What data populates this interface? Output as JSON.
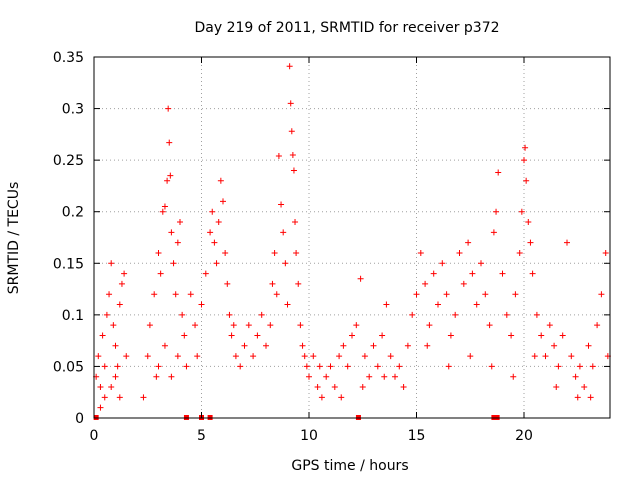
{
  "chart_data": {
    "type": "scatter",
    "title": "Day 219 of 2011, SRMTID for receiver p372",
    "xlabel": "GPS time / hours",
    "ylabel": "SRMTID / TECUs",
    "xlim": [
      0,
      24
    ],
    "ylim": [
      0,
      0.35
    ],
    "x_ticks": [
      0,
      5,
      10,
      15,
      20
    ],
    "x_tick_labels": [
      "0",
      "5",
      "10",
      "15",
      "20"
    ],
    "y_ticks": [
      0,
      0.05,
      0.1,
      0.15,
      0.2,
      0.25,
      0.3,
      0.35
    ],
    "y_tick_labels": [
      "0",
      "0.05",
      "0.1",
      "0.15",
      "0.2",
      "0.25",
      "0.3",
      "0.35"
    ],
    "grid": true,
    "marker": "+",
    "series": [
      {
        "name": "SRMTID",
        "color": "#ff0000",
        "points": [
          [
            0.1,
            0.04
          ],
          [
            0.2,
            0.06
          ],
          [
            0.3,
            0.03
          ],
          [
            0.4,
            0.08
          ],
          [
            0.5,
            0.05
          ],
          [
            0.6,
            0.1
          ],
          [
            0.7,
            0.12
          ],
          [
            0.8,
            0.15
          ],
          [
            0.9,
            0.09
          ],
          [
            1.0,
            0.07
          ],
          [
            1.1,
            0.05
          ],
          [
            1.2,
            0.11
          ],
          [
            1.3,
            0.13
          ],
          [
            1.4,
            0.14
          ],
          [
            1.5,
            0.06
          ],
          [
            0.5,
            0.02
          ],
          [
            0.8,
            0.03
          ],
          [
            1.2,
            0.02
          ],
          [
            0.3,
            0.01
          ],
          [
            1.0,
            0.04
          ],
          [
            2.3,
            0.02
          ],
          [
            2.5,
            0.06
          ],
          [
            2.6,
            0.09
          ],
          [
            2.8,
            0.12
          ],
          [
            2.9,
            0.04
          ],
          [
            3.0,
            0.16
          ],
          [
            3.1,
            0.14
          ],
          [
            3.2,
            0.2
          ],
          [
            3.3,
            0.205
          ],
          [
            3.4,
            0.23
          ],
          [
            3.45,
            0.3
          ],
          [
            3.5,
            0.267
          ],
          [
            3.55,
            0.235
          ],
          [
            3.6,
            0.18
          ],
          [
            3.7,
            0.15
          ],
          [
            3.8,
            0.12
          ],
          [
            3.9,
            0.17
          ],
          [
            4.0,
            0.19
          ],
          [
            4.1,
            0.1
          ],
          [
            4.2,
            0.08
          ],
          [
            3.0,
            0.05
          ],
          [
            3.3,
            0.07
          ],
          [
            3.6,
            0.04
          ],
          [
            3.9,
            0.06
          ],
          [
            4.3,
            0.05
          ],
          [
            4.5,
            0.12
          ],
          [
            4.7,
            0.09
          ],
          [
            4.8,
            0.06
          ],
          [
            5.0,
            0.11
          ],
          [
            5.2,
            0.14
          ],
          [
            5.4,
            0.18
          ],
          [
            5.5,
            0.2
          ],
          [
            5.6,
            0.17
          ],
          [
            5.7,
            0.15
          ],
          [
            5.8,
            0.19
          ],
          [
            5.9,
            0.23
          ],
          [
            6.0,
            0.21
          ],
          [
            6.1,
            0.16
          ],
          [
            6.2,
            0.13
          ],
          [
            6.3,
            0.1
          ],
          [
            6.4,
            0.08
          ],
          [
            6.5,
            0.09
          ],
          [
            6.6,
            0.06
          ],
          [
            6.8,
            0.05
          ],
          [
            7.0,
            0.07
          ],
          [
            7.2,
            0.09
          ],
          [
            7.4,
            0.06
          ],
          [
            7.6,
            0.08
          ],
          [
            7.8,
            0.1
          ],
          [
            8.0,
            0.07
          ],
          [
            8.2,
            0.09
          ],
          [
            8.3,
            0.13
          ],
          [
            8.4,
            0.16
          ],
          [
            8.5,
            0.12
          ],
          [
            8.6,
            0.254
          ],
          [
            8.7,
            0.207
          ],
          [
            8.8,
            0.18
          ],
          [
            8.9,
            0.15
          ],
          [
            9.0,
            0.11
          ],
          [
            9.1,
            0.341
          ],
          [
            9.15,
            0.305
          ],
          [
            9.2,
            0.278
          ],
          [
            9.25,
            0.255
          ],
          [
            9.3,
            0.24
          ],
          [
            9.35,
            0.19
          ],
          [
            9.4,
            0.16
          ],
          [
            9.5,
            0.13
          ],
          [
            9.6,
            0.09
          ],
          [
            9.7,
            0.07
          ],
          [
            9.8,
            0.06
          ],
          [
            9.9,
            0.05
          ],
          [
            10.0,
            0.04
          ],
          [
            10.2,
            0.06
          ],
          [
            10.4,
            0.03
          ],
          [
            10.6,
            0.02
          ],
          [
            10.8,
            0.04
          ],
          [
            11.0,
            0.05
          ],
          [
            11.2,
            0.03
          ],
          [
            11.4,
            0.06
          ],
          [
            11.6,
            0.07
          ],
          [
            11.8,
            0.05
          ],
          [
            12.0,
            0.08
          ],
          [
            12.2,
            0.09
          ],
          [
            12.4,
            0.135
          ],
          [
            12.6,
            0.06
          ],
          [
            12.8,
            0.04
          ],
          [
            13.0,
            0.07
          ],
          [
            13.2,
            0.05
          ],
          [
            13.4,
            0.08
          ],
          [
            13.6,
            0.11
          ],
          [
            13.8,
            0.06
          ],
          [
            14.0,
            0.04
          ],
          [
            14.2,
            0.05
          ],
          [
            14.4,
            0.03
          ],
          [
            14.6,
            0.07
          ],
          [
            14.8,
            0.1
          ],
          [
            15.0,
            0.12
          ],
          [
            15.2,
            0.16
          ],
          [
            15.4,
            0.13
          ],
          [
            15.6,
            0.09
          ],
          [
            15.8,
            0.14
          ],
          [
            16.0,
            0.11
          ],
          [
            16.2,
            0.15
          ],
          [
            16.4,
            0.12
          ],
          [
            16.6,
            0.08
          ],
          [
            16.8,
            0.1
          ],
          [
            17.0,
            0.16
          ],
          [
            17.2,
            0.13
          ],
          [
            17.4,
            0.17
          ],
          [
            17.6,
            0.14
          ],
          [
            17.8,
            0.11
          ],
          [
            18.0,
            0.15
          ],
          [
            18.2,
            0.12
          ],
          [
            18.4,
            0.09
          ],
          [
            18.6,
            0.18
          ],
          [
            18.7,
            0.2
          ],
          [
            18.8,
            0.238
          ],
          [
            19.0,
            0.14
          ],
          [
            19.2,
            0.1
          ],
          [
            19.4,
            0.08
          ],
          [
            19.6,
            0.12
          ],
          [
            19.8,
            0.16
          ],
          [
            19.9,
            0.2
          ],
          [
            20.0,
            0.25
          ],
          [
            20.05,
            0.262
          ],
          [
            20.1,
            0.23
          ],
          [
            20.2,
            0.19
          ],
          [
            20.3,
            0.17
          ],
          [
            20.4,
            0.14
          ],
          [
            20.6,
            0.1
          ],
          [
            20.8,
            0.08
          ],
          [
            21.0,
            0.06
          ],
          [
            21.2,
            0.09
          ],
          [
            21.4,
            0.07
          ],
          [
            21.6,
            0.05
          ],
          [
            21.8,
            0.08
          ],
          [
            22.0,
            0.17
          ],
          [
            22.2,
            0.06
          ],
          [
            22.4,
            0.04
          ],
          [
            22.6,
            0.05
          ],
          [
            22.8,
            0.03
          ],
          [
            23.0,
            0.07
          ],
          [
            23.2,
            0.05
          ],
          [
            23.4,
            0.09
          ],
          [
            23.6,
            0.12
          ],
          [
            23.8,
            0.16
          ],
          [
            23.9,
            0.06
          ],
          [
            22.5,
            0.02
          ],
          [
            23.1,
            0.02
          ],
          [
            16.5,
            0.05
          ],
          [
            17.5,
            0.06
          ],
          [
            15.5,
            0.07
          ],
          [
            13.5,
            0.04
          ],
          [
            12.5,
            0.03
          ],
          [
            11.5,
            0.02
          ],
          [
            10.5,
            0.05
          ],
          [
            19.5,
            0.04
          ],
          [
            20.5,
            0.06
          ],
          [
            21.5,
            0.03
          ],
          [
            18.5,
            0.05
          ]
        ]
      }
    ],
    "zero_markers": [
      0.1,
      4.3,
      5.0,
      5.4,
      12.3,
      18.6,
      18.75
    ]
  }
}
